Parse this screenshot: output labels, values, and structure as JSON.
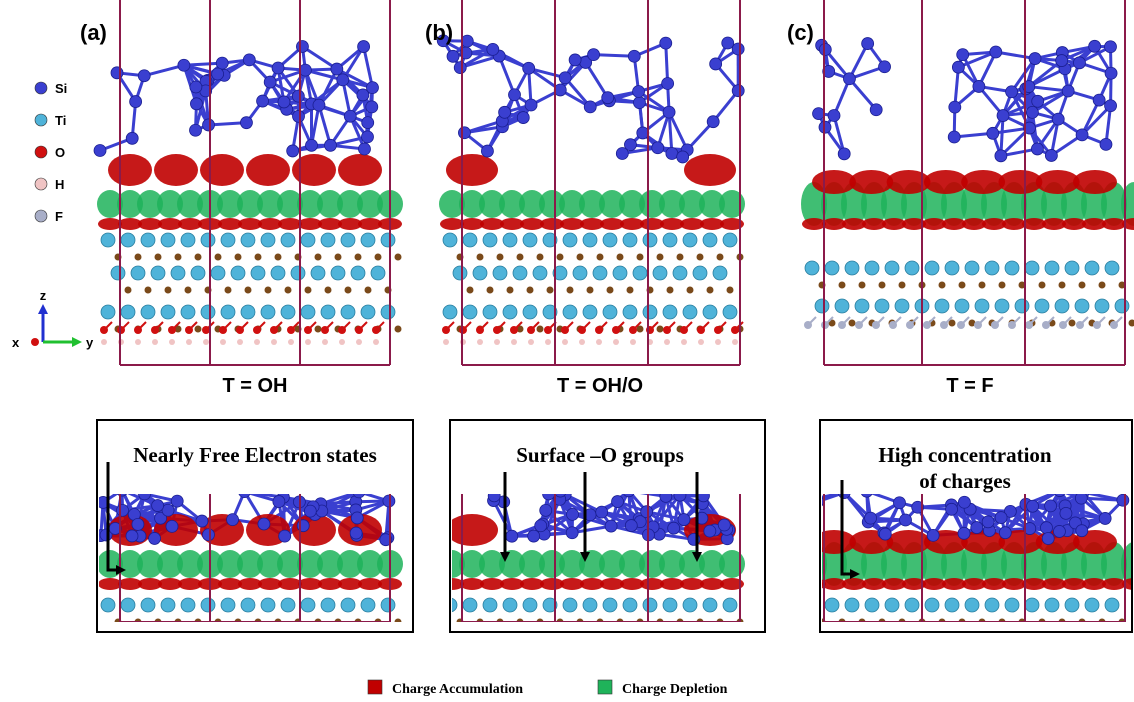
{
  "panels": [
    {
      "label": "(a)",
      "caption": "T = OH",
      "inset_label_lines": [
        "Nearly Free Electron states"
      ]
    },
    {
      "label": "(b)",
      "caption": "T = OH/O",
      "inset_label_lines": [
        "Surface –O groups"
      ]
    },
    {
      "label": "(c)",
      "caption": "T  = F",
      "inset_label_lines": [
        "High concentration",
        "of charges"
      ]
    }
  ],
  "element_legend": [
    {
      "symbol": "Si",
      "color": "#3a3fd0"
    },
    {
      "symbol": "Ti",
      "color": "#4fb3d9"
    },
    {
      "symbol": "O",
      "color": "#d01010"
    },
    {
      "symbol": "H",
      "color": "#f0c4c4"
    },
    {
      "symbol": "F",
      "color": "#a8aec8"
    }
  ],
  "axes": {
    "x": "x",
    "y": "y",
    "z": "z"
  },
  "charge_legend": [
    {
      "label": "Charge Accumulation",
      "color": "#c00000"
    },
    {
      "label": "Charge Depletion",
      "color": "#1fb35a"
    }
  ]
}
